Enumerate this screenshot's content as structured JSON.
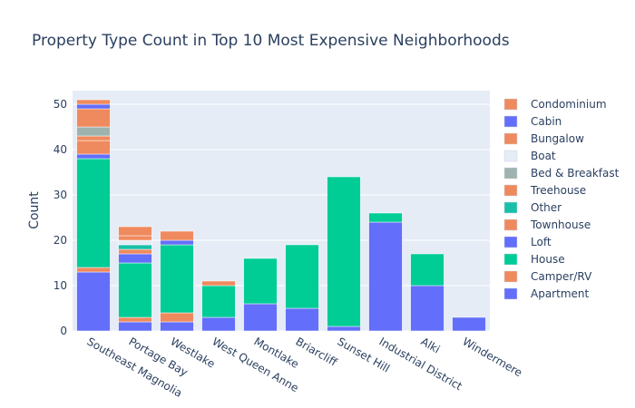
{
  "chart_data": {
    "type": "bar",
    "barmode": "stack",
    "title": "Property Type Count in Top 10 Most Expensive Neighborhoods",
    "xlabel": "",
    "ylabel": "Count",
    "ylim": [
      0,
      53
    ],
    "yticks": [
      0,
      10,
      20,
      30,
      40,
      50
    ],
    "grid": true,
    "legend_position": "right",
    "categories": [
      "Southeast Magnolia",
      "Portage Bay",
      "Westlake",
      "West Queen Anne",
      "Montlake",
      "Briarcliff",
      "Sunset Hill",
      "Industrial District",
      "Alki",
      "Windermere"
    ],
    "series": [
      {
        "name": "Apartment",
        "color": "#636efa",
        "values": [
          13,
          2,
          2,
          3,
          6,
          5,
          1,
          24,
          10,
          3
        ]
      },
      {
        "name": "Camper/RV",
        "color": "#ef8a5e",
        "values": [
          1,
          1,
          2,
          0,
          0,
          0,
          0,
          0,
          0,
          0
        ]
      },
      {
        "name": "House",
        "color": "#00cc96",
        "values": [
          24,
          12,
          15,
          7,
          10,
          14,
          33,
          2,
          7,
          0
        ]
      },
      {
        "name": "Loft",
        "color": "#636efa",
        "values": [
          1,
          2,
          1,
          0,
          0,
          0,
          0,
          0,
          0,
          0
        ]
      },
      {
        "name": "Townhouse",
        "color": "#ef8a5e",
        "values": [
          3,
          1,
          2,
          1,
          0,
          0,
          0,
          0,
          0,
          0
        ]
      },
      {
        "name": "Other",
        "color": "#19bfa8",
        "values": [
          0,
          1,
          0,
          0,
          0,
          0,
          0,
          0,
          0,
          0
        ]
      },
      {
        "name": "Treehouse",
        "color": "#ef8a5e",
        "values": [
          1,
          0,
          0,
          0,
          0,
          0,
          0,
          0,
          0,
          0
        ]
      },
      {
        "name": "Bed & Breakfast",
        "color": "#9fb3ae",
        "values": [
          2,
          0,
          0,
          0,
          0,
          0,
          0,
          0,
          0,
          0
        ]
      },
      {
        "name": "Boat",
        "color": "#e5ecf6",
        "values": [
          0,
          1,
          0,
          0,
          0,
          0,
          0,
          0,
          0,
          0
        ]
      },
      {
        "name": "Bungalow",
        "color": "#ef8a5e",
        "values": [
          4,
          1,
          0,
          0,
          0,
          0,
          0,
          0,
          0,
          0
        ]
      },
      {
        "name": "Cabin",
        "color": "#636efa",
        "values": [
          1,
          0,
          0,
          0,
          0,
          0,
          0,
          0,
          0,
          0
        ]
      },
      {
        "name": "Condominium",
        "color": "#ef8a5e",
        "values": [
          1,
          2,
          0,
          0,
          0,
          0,
          0,
          0,
          0,
          0
        ]
      }
    ]
  }
}
